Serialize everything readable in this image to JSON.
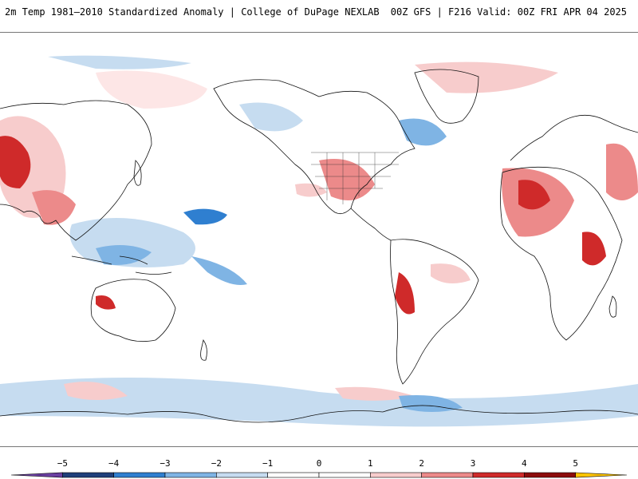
{
  "header": {
    "title": "2m Temp 1981–2010 Standardized Anomaly | College of DuPage NEXLAB",
    "run_info": "00Z GFS | F216 Valid: 00Z FRI APR 04 2025"
  },
  "legend": {
    "ticks": [
      "−5",
      "−4",
      "−3",
      "−2",
      "−1",
      "0",
      "1",
      "2",
      "3",
      "4",
      "5"
    ],
    "bins": [
      {
        "color": "#6a3fa0"
      },
      {
        "color": "#1f3f7a"
      },
      {
        "color": "#2f7fd0"
      },
      {
        "color": "#7fb4e4"
      },
      {
        "color": "#c6dcf0"
      },
      {
        "color": "#ffffff"
      },
      {
        "color": "#ffffff"
      },
      {
        "color": "#f7cccc"
      },
      {
        "color": "#ec8a8a"
      },
      {
        "color": "#cf2a2a"
      },
      {
        "color": "#8c0c0c"
      },
      {
        "color": "#ffc400"
      }
    ]
  },
  "palette": {
    "land_line": "#111111",
    "border_line": "#333333"
  }
}
